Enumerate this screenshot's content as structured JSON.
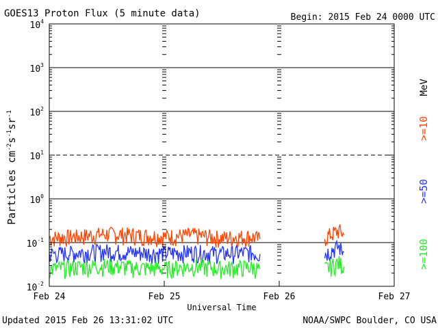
{
  "header": {
    "title": "GOES13 Proton Flux (5 minute data)",
    "begin": "Begin: 2015 Feb 24 0000 UTC"
  },
  "footer": {
    "updated": "Updated 2015 Feb 26 13:31:02 UTC",
    "credit": "NOAA/SWPC Boulder, CO USA"
  },
  "colors": {
    "ge10": "#ff4400",
    "ge50": "#2233ff",
    "ge100": "#22ee22",
    "grid": "#000000"
  },
  "chart_data": {
    "type": "line",
    "title": "GOES13 Proton Flux (5 minute data)",
    "xlabel": "Universal Time",
    "ylabel_parts": [
      "Particles cm",
      "-2",
      "s",
      "-1",
      "sr",
      "-1"
    ],
    "y_scale": "log",
    "ylim": [
      0.01,
      10000
    ],
    "y_ticks": [
      {
        "value": 10000,
        "base": "10",
        "exp": "4"
      },
      {
        "value": 1000,
        "base": "10",
        "exp": "3"
      },
      {
        "value": 100,
        "base": "10",
        "exp": "2"
      },
      {
        "value": 10,
        "base": "10",
        "exp": "1"
      },
      {
        "value": 1,
        "base": "10",
        "exp": "0"
      },
      {
        "value": 0.1,
        "base": "10",
        "exp": "-1"
      },
      {
        "value": 0.01,
        "base": "10",
        "exp": "-2"
      }
    ],
    "dashed_threshold": 10,
    "xlim": [
      "2015-02-24",
      "2015-02-27"
    ],
    "x_ticks": [
      "Feb 24",
      "Feb 25",
      "Feb 26",
      "Feb 27"
    ],
    "data_gap": [
      "2015-02-25 20:00",
      "2015-02-26 09:30"
    ],
    "legend": {
      "unit": "MeV",
      "items": [
        {
          "label": ">=10",
          "color": "#ff4400"
        },
        {
          "label": ">=50",
          "color": "#2233ff"
        },
        {
          "label": ">=100",
          "color": "#22ee22"
        }
      ]
    },
    "series": [
      {
        "name": ">=10",
        "segments": [
          {
            "x": [
              "2015-02-24 00:00",
              "2015-02-24 06:00",
              "2015-02-24 12:00",
              "2015-02-24 18:00",
              "2015-02-25 00:00",
              "2015-02-25 06:00",
              "2015-02-25 12:00",
              "2015-02-25 18:00",
              "2015-02-25 20:00"
            ],
            "y": [
              0.13,
              0.14,
              0.16,
              0.15,
              0.14,
              0.15,
              0.13,
              0.14,
              0.12
            ]
          },
          {
            "x": [
              "2015-02-26 09:30",
              "2015-02-26 11:00",
              "2015-02-26 12:30",
              "2015-02-26 13:30"
            ],
            "y": [
              0.13,
              0.16,
              0.19,
              0.15
            ]
          }
        ]
      },
      {
        "name": ">=50",
        "segments": [
          {
            "x": [
              "2015-02-24 00:00",
              "2015-02-24 06:00",
              "2015-02-24 12:00",
              "2015-02-24 18:00",
              "2015-02-25 00:00",
              "2015-02-25 06:00",
              "2015-02-25 12:00",
              "2015-02-25 18:00",
              "2015-02-25 20:00"
            ],
            "y": [
              0.055,
              0.06,
              0.065,
              0.06,
              0.058,
              0.062,
              0.057,
              0.06,
              0.055
            ]
          },
          {
            "x": [
              "2015-02-26 09:30",
              "2015-02-26 11:00",
              "2015-02-26 12:30",
              "2015-02-26 13:30"
            ],
            "y": [
              0.055,
              0.07,
              0.08,
              0.06
            ]
          }
        ]
      },
      {
        "name": ">=100",
        "segments": [
          {
            "x": [
              "2015-02-24 00:00",
              "2015-02-24 06:00",
              "2015-02-24 12:00",
              "2015-02-24 18:00",
              "2015-02-25 00:00",
              "2015-02-25 06:00",
              "2015-02-25 12:00",
              "2015-02-25 18:00",
              "2015-02-25 20:00"
            ],
            "y": [
              0.025,
              0.028,
              0.03,
              0.027,
              0.026,
              0.029,
              0.026,
              0.028,
              0.025
            ]
          },
          {
            "x": [
              "2015-02-26 09:30",
              "2015-02-26 11:00",
              "2015-02-26 12:30",
              "2015-02-26 13:30"
            ],
            "y": [
              0.025,
              0.03,
              0.035,
              0.028
            ]
          }
        ]
      }
    ]
  }
}
